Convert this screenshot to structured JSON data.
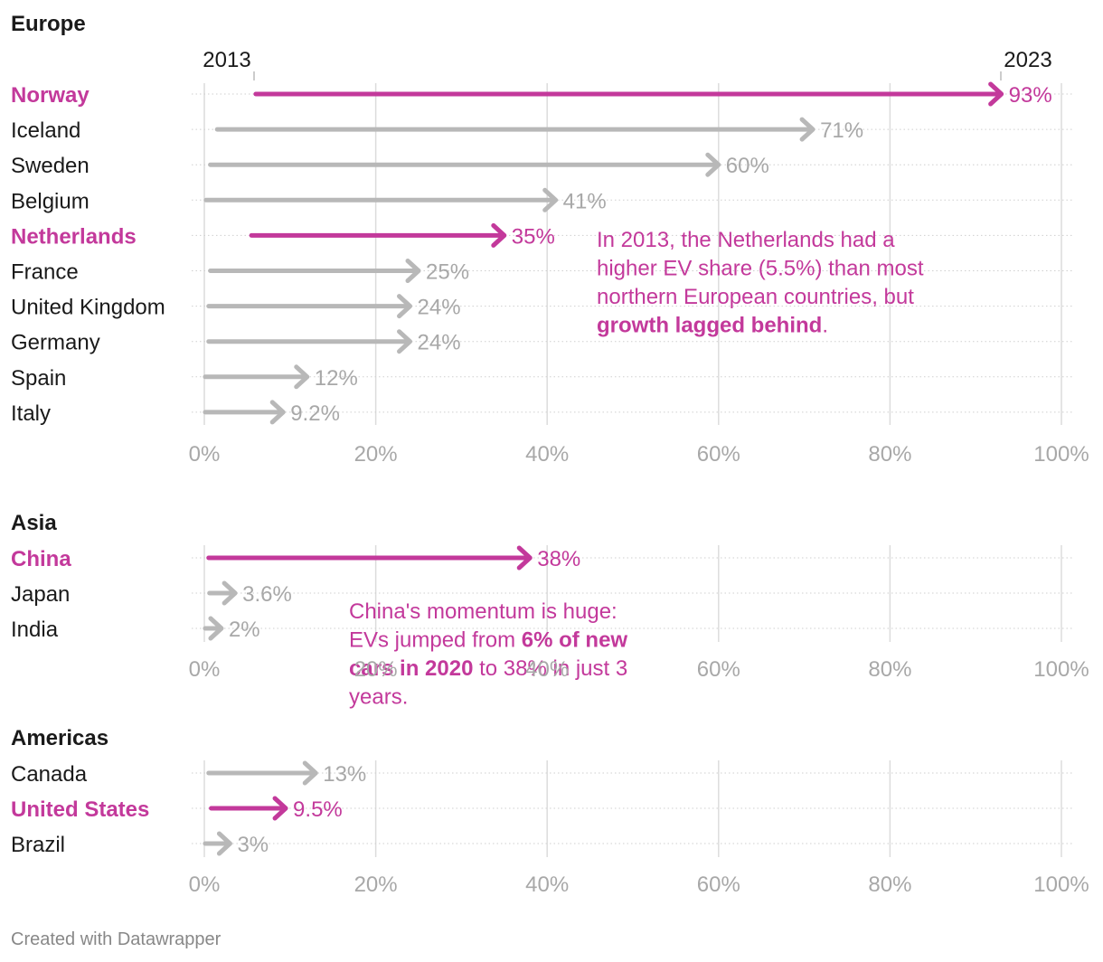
{
  "colors": {
    "highlight": "#c3399b",
    "muted": "#b8b8b8",
    "muted_text": "#a8a8a8",
    "label": "#1a1a1a",
    "grid": "#dcdcdc",
    "row_line": "#cfcfcf"
  },
  "chart_data": {
    "type": "arrow-range",
    "value_unit": "%",
    "xlim": [
      0,
      100
    ],
    "ticks": [
      0,
      20,
      40,
      60,
      80,
      100
    ],
    "tick_labels": [
      "0%",
      "20%",
      "40%",
      "60%",
      "80%",
      "100%"
    ],
    "start_year_label": "2013",
    "end_year_label": "2023",
    "groups": [
      {
        "title": "Europe",
        "rows": [
          {
            "country": "Norway",
            "start": 6,
            "end": 93,
            "label": "93%",
            "highlight": true
          },
          {
            "country": "Iceland",
            "start": 1.5,
            "end": 71,
            "label": "71%",
            "highlight": false
          },
          {
            "country": "Sweden",
            "start": 0.7,
            "end": 60,
            "label": "60%",
            "highlight": false
          },
          {
            "country": "Belgium",
            "start": 0.2,
            "end": 41,
            "label": "41%",
            "highlight": false
          },
          {
            "country": "Netherlands",
            "start": 5.5,
            "end": 35,
            "label": "35%",
            "highlight": true
          },
          {
            "country": "France",
            "start": 0.7,
            "end": 25,
            "label": "25%",
            "highlight": false
          },
          {
            "country": "United Kingdom",
            "start": 0.5,
            "end": 24,
            "label": "24%",
            "highlight": false
          },
          {
            "country": "Germany",
            "start": 0.5,
            "end": 24,
            "label": "24%",
            "highlight": false
          },
          {
            "country": "Spain",
            "start": 0.1,
            "end": 12,
            "label": "12%",
            "highlight": false
          },
          {
            "country": "Italy",
            "start": 0.1,
            "end": 9.2,
            "label": "9.2%",
            "highlight": false
          }
        ]
      },
      {
        "title": "Asia",
        "rows": [
          {
            "country": "China",
            "start": 0.5,
            "end": 38,
            "label": "38%",
            "highlight": true
          },
          {
            "country": "Japan",
            "start": 0.6,
            "end": 3.6,
            "label": "3.6%",
            "highlight": false
          },
          {
            "country": "India",
            "start": 0.1,
            "end": 2,
            "label": "2%",
            "highlight": false
          }
        ]
      },
      {
        "title": "Americas",
        "rows": [
          {
            "country": "Canada",
            "start": 0.5,
            "end": 13,
            "label": "13%",
            "highlight": false
          },
          {
            "country": "United States",
            "start": 0.8,
            "end": 9.5,
            "label": "9.5%",
            "highlight": true
          },
          {
            "country": "Brazil",
            "start": 0.1,
            "end": 3,
            "label": "3%",
            "highlight": false
          }
        ]
      }
    ],
    "annotations": [
      {
        "group": "Europe",
        "lines": [
          [
            {
              "text": "In 2013, the Netherlands had a",
              "bold": false
            }
          ],
          [
            {
              "text": "higher EV share (5.5%) than most",
              "bold": false
            }
          ],
          [
            {
              "text": "northern European countries, but",
              "bold": false
            }
          ],
          [
            {
              "text": "growth lagged behind",
              "bold": true
            },
            {
              "text": ".",
              "bold": false
            }
          ]
        ]
      },
      {
        "group": "Asia",
        "lines": [
          [
            {
              "text": "China's momentum is huge:",
              "bold": false
            }
          ],
          [
            {
              "text": "EVs jumped from ",
              "bold": false
            },
            {
              "text": "6% of new",
              "bold": true
            }
          ],
          [
            {
              "text": "cars in 2020",
              "bold": true
            },
            {
              "text": " to 38% in just 3",
              "bold": false
            }
          ],
          [
            {
              "text": "years.",
              "bold": false
            }
          ]
        ]
      }
    ]
  },
  "footer": {
    "credit": "Created with Datawrapper"
  }
}
